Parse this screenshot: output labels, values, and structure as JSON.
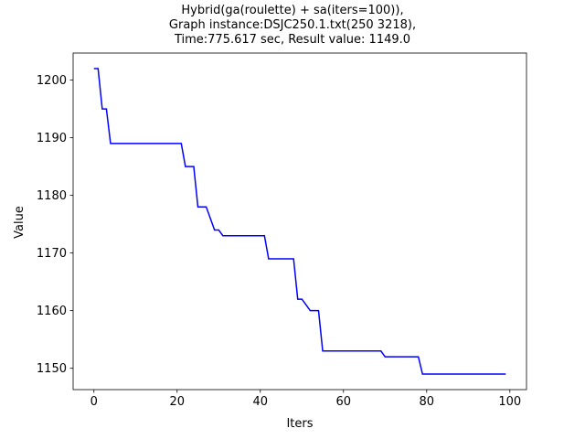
{
  "chart_data": {
    "type": "line",
    "title_lines": [
      "Hybrid(ga(roulette) + sa(iters=100)),",
      "Graph instance:DSJC250.1.txt(250 3218),",
      "Time:775.617 sec, Result value: 1149.0"
    ],
    "xlabel": "Iters",
    "ylabel": "Value",
    "xlim": [
      -5,
      104
    ],
    "ylim": [
      1146.3,
      1204.7
    ],
    "xticks": [
      0,
      20,
      40,
      60,
      80,
      100
    ],
    "yticks": [
      1150,
      1160,
      1170,
      1180,
      1190,
      1200
    ],
    "grid": false,
    "line_color": "#0000ff",
    "series": [
      {
        "x": [
          0,
          1,
          2,
          3,
          4,
          5,
          6,
          7,
          8,
          9,
          10,
          11,
          12,
          13,
          14,
          15,
          16,
          17,
          18,
          19,
          20,
          21,
          22,
          23,
          24,
          25,
          26,
          27,
          28,
          29,
          30,
          31,
          32,
          33,
          34,
          35,
          36,
          37,
          38,
          39,
          40,
          41,
          42,
          43,
          44,
          45,
          46,
          47,
          48,
          49,
          50,
          51,
          52,
          53,
          54,
          55,
          56,
          57,
          58,
          59,
          60,
          61,
          62,
          63,
          64,
          65,
          66,
          67,
          68,
          69,
          70,
          71,
          72,
          73,
          74,
          75,
          76,
          77,
          78,
          79,
          80,
          81,
          82,
          83,
          84,
          85,
          86,
          87,
          88,
          89,
          90,
          91,
          92,
          93,
          94,
          95,
          96,
          97,
          98,
          99
        ],
        "y": [
          1202,
          1202,
          1195,
          1195,
          1189,
          1189,
          1189,
          1189,
          1189,
          1189,
          1189,
          1189,
          1189,
          1189,
          1189,
          1189,
          1189,
          1189,
          1189,
          1189,
          1189,
          1189,
          1185,
          1185,
          1185,
          1178,
          1178,
          1178,
          1176,
          1174,
          1174,
          1173,
          1173,
          1173,
          1173,
          1173,
          1173,
          1173,
          1173,
          1173,
          1173,
          1173,
          1169,
          1169,
          1169,
          1169,
          1169,
          1169,
          1169,
          1162,
          1162,
          1161,
          1160,
          1160,
          1160,
          1153,
          1153,
          1153,
          1153,
          1153,
          1153,
          1153,
          1153,
          1153,
          1153,
          1153,
          1153,
          1153,
          1153,
          1153,
          1152,
          1152,
          1152,
          1152,
          1152,
          1152,
          1152,
          1152,
          1152,
          1149,
          1149,
          1149,
          1149,
          1149,
          1149,
          1149,
          1149,
          1149,
          1149,
          1149,
          1149,
          1149,
          1149,
          1149,
          1149,
          1149,
          1149,
          1149,
          1149,
          1149
        ]
      }
    ]
  }
}
